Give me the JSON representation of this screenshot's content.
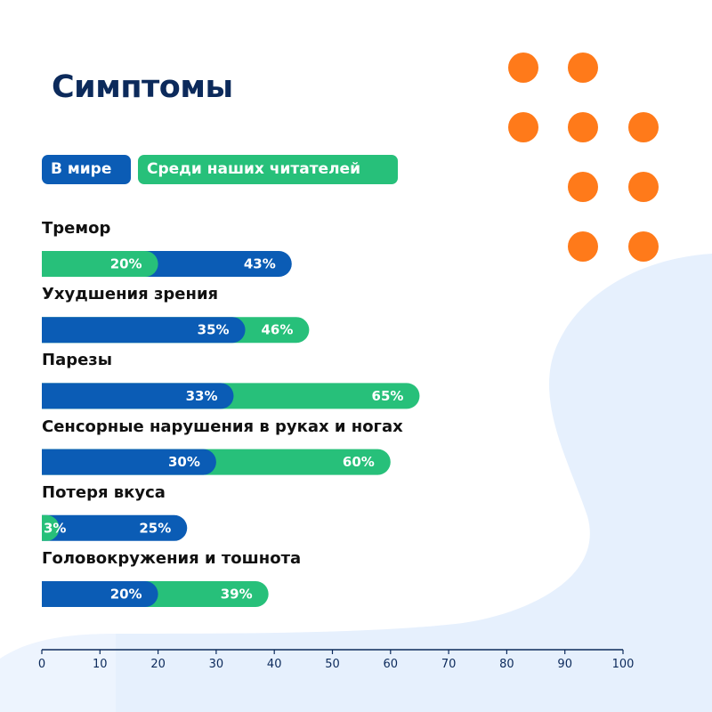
{
  "title": "Симптомы",
  "colors": {
    "world": "#0b5cb5",
    "readers": "#27c07a",
    "title": "#0c2a5b",
    "dots": "#ff7a1a",
    "blob": "#e6f0fd"
  },
  "legend": {
    "world": "В мире",
    "readers": "Среди наших читателей"
  },
  "chart_data": {
    "type": "bar",
    "orientation": "horizontal",
    "categories": [
      "Тремор",
      "Ухудшения зрения",
      "Парезы",
      "Сенсорные нарушения в руках и ногах",
      "Потеря вкуса",
      "Головокружения и тошнота"
    ],
    "series": [
      {
        "name": "В мире",
        "values": [
          43,
          35,
          33,
          30,
          25,
          20
        ],
        "labels": [
          "43%",
          "35%",
          "33%",
          "30%",
          "25%",
          "20%"
        ]
      },
      {
        "name": "Среди наших читателей",
        "values": [
          20,
          46,
          65,
          60,
          3,
          39
        ],
        "labels": [
          "20%",
          "46%",
          "65%",
          "60%",
          "3%",
          "39%"
        ]
      }
    ],
    "xlim": [
      0,
      100
    ],
    "xticks": [
      "0",
      "10",
      "20",
      "30",
      "40",
      "50",
      "60",
      "70",
      "80",
      "90",
      "100"
    ],
    "grid": false,
    "legend_position": "top-left"
  }
}
